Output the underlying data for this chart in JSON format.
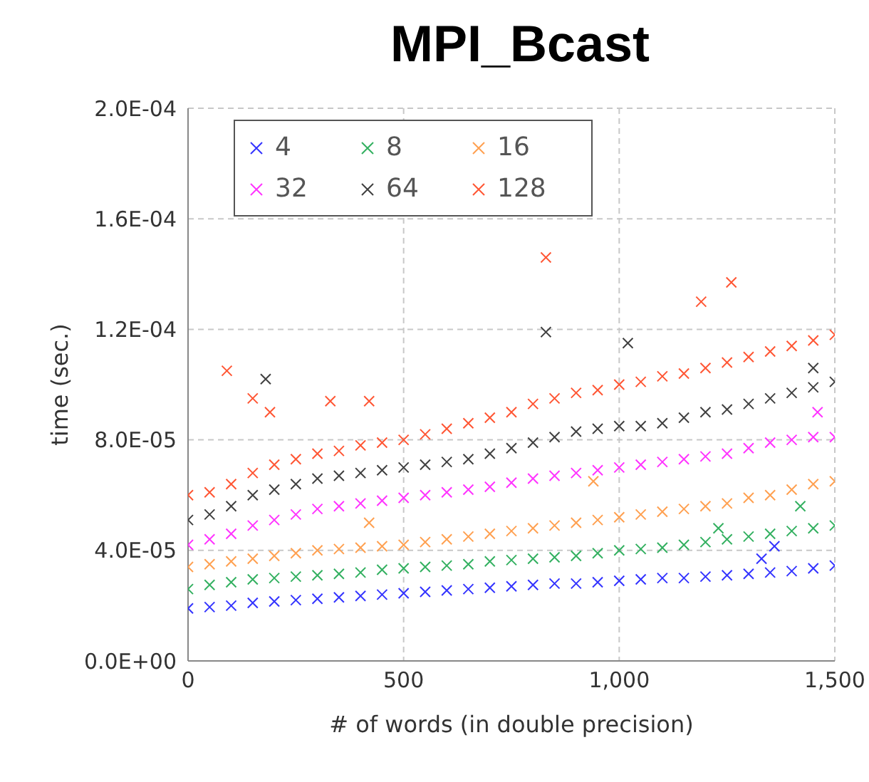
{
  "chart_data": {
    "type": "scatter",
    "title": "MPI_Bcast",
    "xlabel": "# of words (in double precision)",
    "ylabel": "time (sec.)",
    "xlim": [
      0,
      1500
    ],
    "xticks": [
      0,
      500,
      {
        "value": 1000,
        "label": "1,000"
      },
      {
        "value": 1500,
        "label": "1,500"
      }
    ],
    "ylim": [
      0,
      0.0002
    ],
    "yticks": [
      {
        "value": 0,
        "label": "0.0E+00"
      },
      {
        "value": 4e-05,
        "label": "4.0E-05"
      },
      {
        "value": 8e-05,
        "label": "8.0E-05"
      },
      {
        "value": 0.00012,
        "label": "1.2E-04"
      },
      {
        "value": 0.00016,
        "label": "1.6E-04"
      },
      {
        "value": 0.0002,
        "label": "2.0E-04"
      }
    ],
    "grid": true,
    "legend": "top left",
    "marker": "cross",
    "series": [
      {
        "name": "4",
        "color": "#3333ff",
        "x": [
          0,
          50,
          100,
          150,
          200,
          250,
          300,
          350,
          400,
          450,
          500,
          550,
          600,
          650,
          700,
          750,
          800,
          850,
          900,
          950,
          1000,
          1050,
          1100,
          1150,
          1200,
          1250,
          1300,
          1350,
          1400,
          1450,
          1500,
          1330,
          1360
        ],
        "values": [
          1.9e-05,
          1.95e-05,
          2e-05,
          2.1e-05,
          2.15e-05,
          2.2e-05,
          2.25e-05,
          2.3e-05,
          2.35e-05,
          2.4e-05,
          2.45e-05,
          2.5e-05,
          2.55e-05,
          2.6e-05,
          2.65e-05,
          2.7e-05,
          2.75e-05,
          2.8e-05,
          2.8e-05,
          2.85e-05,
          2.9e-05,
          2.95e-05,
          3e-05,
          3e-05,
          3.05e-05,
          3.1e-05,
          3.15e-05,
          3.2e-05,
          3.25e-05,
          3.35e-05,
          3.45e-05,
          3.7e-05,
          4.15e-05
        ]
      },
      {
        "name": "8",
        "color": "#33b060",
        "x": [
          0,
          50,
          100,
          150,
          200,
          250,
          300,
          350,
          400,
          450,
          500,
          550,
          600,
          650,
          700,
          750,
          800,
          850,
          900,
          950,
          1000,
          1050,
          1100,
          1150,
          1200,
          1250,
          1300,
          1350,
          1400,
          1450,
          1500,
          1230,
          1420
        ],
        "values": [
          2.6e-05,
          2.75e-05,
          2.85e-05,
          2.95e-05,
          3e-05,
          3.05e-05,
          3.1e-05,
          3.15e-05,
          3.2e-05,
          3.3e-05,
          3.35e-05,
          3.4e-05,
          3.45e-05,
          3.5e-05,
          3.6e-05,
          3.65e-05,
          3.7e-05,
          3.75e-05,
          3.8e-05,
          3.9e-05,
          4e-05,
          4.05e-05,
          4.1e-05,
          4.2e-05,
          4.3e-05,
          4.4e-05,
          4.5e-05,
          4.6e-05,
          4.7e-05,
          4.8e-05,
          4.9e-05,
          4.8e-05,
          5.6e-05
        ]
      },
      {
        "name": "16",
        "color": "#ffa050",
        "x": [
          0,
          50,
          100,
          150,
          200,
          250,
          300,
          350,
          400,
          450,
          500,
          550,
          600,
          650,
          700,
          750,
          800,
          850,
          900,
          950,
          1000,
          1050,
          1100,
          1150,
          1200,
          1250,
          1300,
          1350,
          1400,
          1450,
          1500,
          420,
          940
        ],
        "values": [
          3.4e-05,
          3.5e-05,
          3.6e-05,
          3.7e-05,
          3.8e-05,
          3.9e-05,
          4e-05,
          4.05e-05,
          4.1e-05,
          4.15e-05,
          4.2e-05,
          4.3e-05,
          4.4e-05,
          4.5e-05,
          4.6e-05,
          4.7e-05,
          4.8e-05,
          4.9e-05,
          5e-05,
          5.1e-05,
          5.2e-05,
          5.3e-05,
          5.4e-05,
          5.5e-05,
          5.6e-05,
          5.7e-05,
          5.9e-05,
          6e-05,
          6.2e-05,
          6.4e-05,
          6.5e-05,
          5e-05,
          6.5e-05
        ]
      },
      {
        "name": "32",
        "color": "#ff33ff",
        "x": [
          0,
          50,
          100,
          150,
          200,
          250,
          300,
          350,
          400,
          450,
          500,
          550,
          600,
          650,
          700,
          750,
          800,
          850,
          900,
          950,
          1000,
          1050,
          1100,
          1150,
          1200,
          1250,
          1300,
          1350,
          1400,
          1450,
          1500,
          1460
        ],
        "values": [
          4.2e-05,
          4.4e-05,
          4.6e-05,
          4.9e-05,
          5.1e-05,
          5.3e-05,
          5.5e-05,
          5.6e-05,
          5.7e-05,
          5.8e-05,
          5.9e-05,
          6e-05,
          6.1e-05,
          6.2e-05,
          6.3e-05,
          6.45e-05,
          6.6e-05,
          6.7e-05,
          6.8e-05,
          6.9e-05,
          7e-05,
          7.1e-05,
          7.2e-05,
          7.3e-05,
          7.4e-05,
          7.5e-05,
          7.7e-05,
          7.9e-05,
          8e-05,
          8.1e-05,
          8.1e-05,
          9e-05
        ]
      },
      {
        "name": "64",
        "color": "#404040",
        "x": [
          0,
          50,
          100,
          150,
          200,
          250,
          300,
          350,
          400,
          450,
          500,
          550,
          600,
          650,
          700,
          750,
          800,
          850,
          900,
          950,
          1000,
          1050,
          1100,
          1150,
          1200,
          1250,
          1300,
          1350,
          1400,
          1450,
          1500,
          180,
          830,
          1020,
          1450
        ],
        "values": [
          5.1e-05,
          5.3e-05,
          5.6e-05,
          6e-05,
          6.2e-05,
          6.4e-05,
          6.6e-05,
          6.7e-05,
          6.8e-05,
          6.9e-05,
          7e-05,
          7.1e-05,
          7.2e-05,
          7.3e-05,
          7.5e-05,
          7.7e-05,
          7.9e-05,
          8.1e-05,
          8.3e-05,
          8.4e-05,
          8.5e-05,
          8.5e-05,
          8.6e-05,
          8.8e-05,
          9e-05,
          9.1e-05,
          9.3e-05,
          9.5e-05,
          9.7e-05,
          9.9e-05,
          0.000101,
          0.000102,
          0.000119,
          0.000115,
          0.000106
        ]
      },
      {
        "name": "128",
        "color": "#ff5533",
        "x": [
          0,
          50,
          100,
          150,
          200,
          250,
          300,
          350,
          400,
          450,
          500,
          550,
          600,
          650,
          700,
          750,
          800,
          850,
          900,
          950,
          1000,
          1050,
          1100,
          1150,
          1200,
          1250,
          1300,
          1350,
          1400,
          1450,
          1500,
          90,
          150,
          190,
          330,
          420,
          830,
          1190,
          1260
        ],
        "values": [
          6e-05,
          6.1e-05,
          6.4e-05,
          6.8e-05,
          7.1e-05,
          7.3e-05,
          7.5e-05,
          7.6e-05,
          7.8e-05,
          7.9e-05,
          8e-05,
          8.2e-05,
          8.4e-05,
          8.6e-05,
          8.8e-05,
          9e-05,
          9.3e-05,
          9.5e-05,
          9.7e-05,
          9.8e-05,
          0.0001,
          0.000101,
          0.000103,
          0.000104,
          0.000106,
          0.000108,
          0.00011,
          0.000112,
          0.000114,
          0.000116,
          0.000118,
          0.000105,
          9.5e-05,
          9e-05,
          9.4e-05,
          9.4e-05,
          0.000146,
          0.00013,
          0.000137
        ]
      }
    ]
  }
}
